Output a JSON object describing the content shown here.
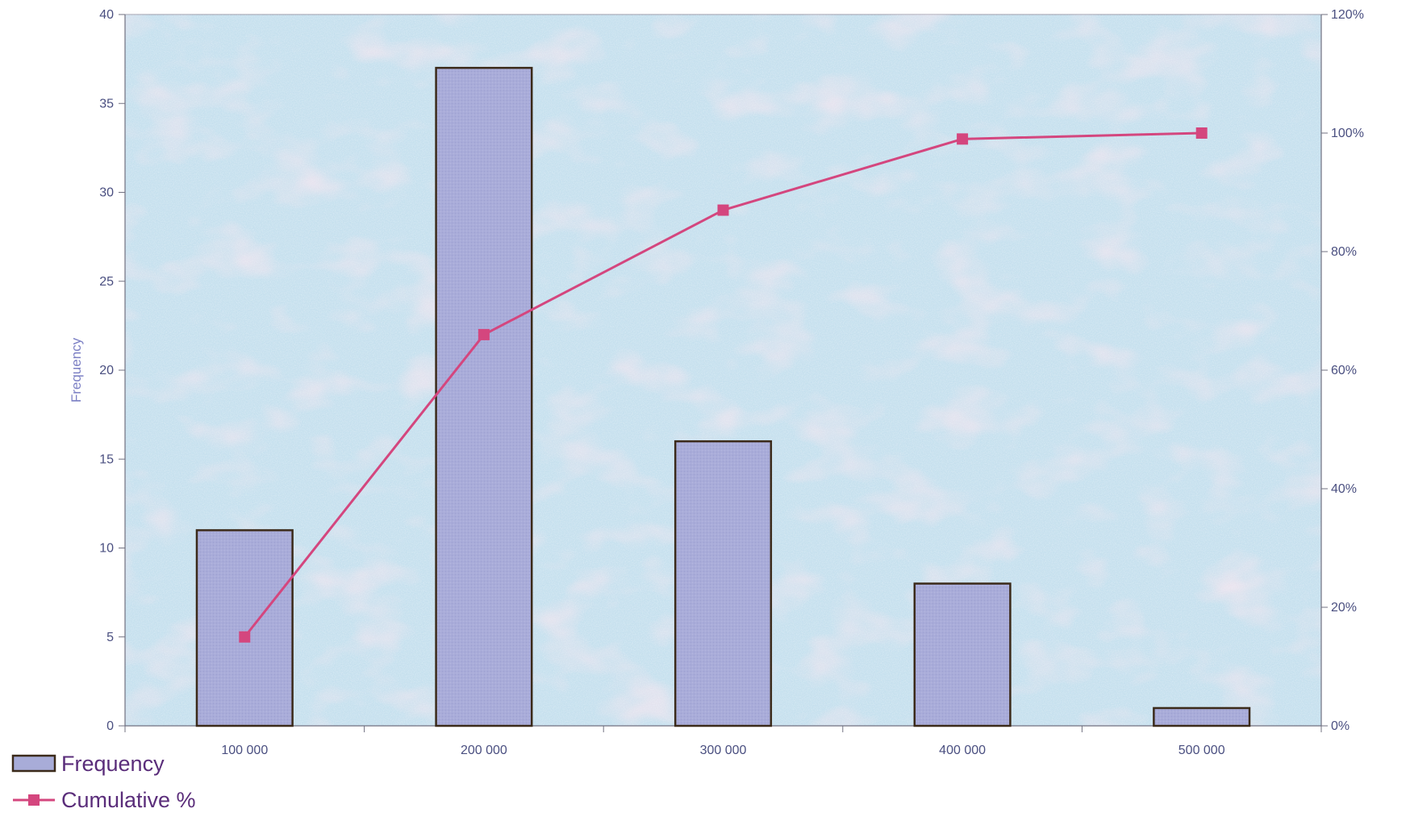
{
  "chart_data": {
    "type": "bar",
    "categories": [
      "100 000",
      "200 000",
      "300 000",
      "400 000",
      "500 000"
    ],
    "series": [
      {
        "name": "Frequency",
        "type": "bar",
        "axis": "left",
        "values": [
          11,
          37,
          16,
          8,
          1
        ],
        "color": "#a8acd8",
        "stroke": "#3b2a1a"
      },
      {
        "name": "Cumulative %",
        "type": "line",
        "axis": "right",
        "values": [
          15,
          66,
          87,
          99,
          100
        ],
        "color": "#d4467e"
      }
    ],
    "title": "",
    "xlabel": "",
    "ylabel": "Frequency",
    "ylim": [
      0,
      40
    ],
    "yticks": [
      0,
      5,
      10,
      15,
      20,
      25,
      30,
      35,
      40
    ],
    "y2lim": [
      0,
      120
    ],
    "y2ticks": [
      "0%",
      "20%",
      "40%",
      "60%",
      "80%",
      "100%",
      "120%"
    ],
    "legend": "bottom-left",
    "plot_background": "#c6e0ee"
  }
}
